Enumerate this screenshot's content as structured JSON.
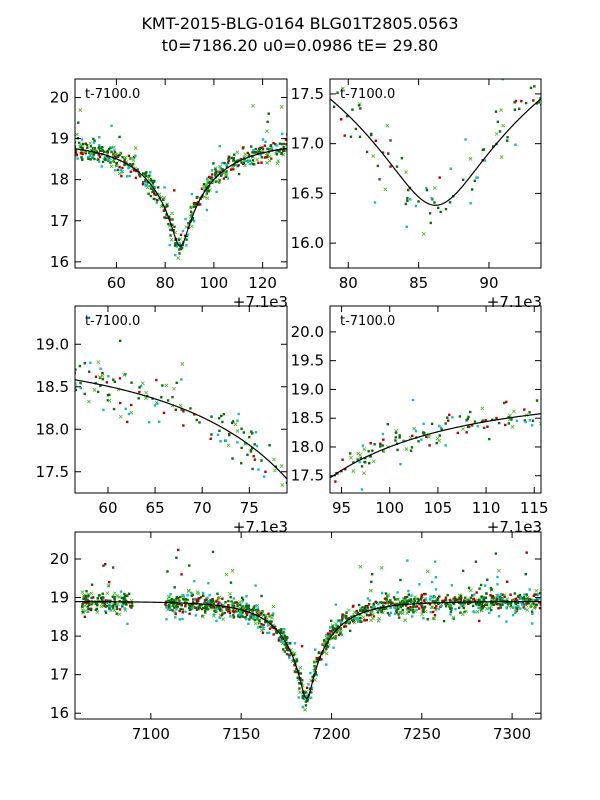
{
  "figure": {
    "title_line1": "KMT-2015-BLG-0164 BLG01T2805.0563",
    "title_line2": "t0=7186.20 u0=0.0986 tE=  29.80"
  },
  "colors": {
    "green": "#0a6b0a",
    "red": "#b00000",
    "cyan": "#19b7c2",
    "lightgreen": "#44bb22",
    "model": "#000000"
  },
  "model": {
    "t0": 7186.2,
    "u0": 0.0986,
    "tE": 29.8,
    "mbase": 18.9
  },
  "chart_data": [
    {
      "id": "p1",
      "type": "scatter",
      "inset_label": "t-7100.0",
      "xlim": [
        43,
        130
      ],
      "ylim": [
        20.45,
        15.85
      ],
      "xticks": [
        60,
        80,
        100,
        120
      ],
      "xtick_labels": [
        "60",
        "80",
        "100",
        "120"
      ],
      "yticks": [
        16,
        17,
        18,
        19,
        20
      ],
      "ytick_labels": [
        "16",
        "17",
        "18",
        "19",
        "20"
      ],
      "offset_label": "+7.1e3",
      "offset": 7100
    },
    {
      "id": "p2",
      "type": "scatter",
      "inset_label": "t-7100.0",
      "xlim": [
        78.7,
        93.7
      ],
      "ylim": [
        17.65,
        15.75
      ],
      "xticks": [
        80,
        85,
        90
      ],
      "xtick_labels": [
        "80",
        "85",
        "90"
      ],
      "yticks": [
        16.0,
        16.5,
        17.0,
        17.5
      ],
      "ytick_labels": [
        "16.0",
        "16.5",
        "17.0",
        "17.5"
      ],
      "offset_label": "+7.1e3",
      "offset": 7100
    },
    {
      "id": "p3",
      "type": "scatter",
      "inset_label": "t-7100.0",
      "xlim": [
        56.5,
        79
      ],
      "ylim": [
        19.45,
        17.25
      ],
      "xticks": [
        60,
        65,
        70,
        75
      ],
      "xtick_labels": [
        "60",
        "65",
        "70",
        "75"
      ],
      "yticks": [
        17.5,
        18.0,
        18.5,
        19.0
      ],
      "ytick_labels": [
        "17.5",
        "18.0",
        "18.5",
        "19.0"
      ],
      "offset_label": "+7.1e3",
      "offset": 7100
    },
    {
      "id": "p4",
      "type": "scatter",
      "inset_label": "t-7100.0",
      "xlim": [
        93.8,
        115.7
      ],
      "ylim": [
        20.45,
        17.2
      ],
      "xticks": [
        95,
        100,
        105,
        110,
        115
      ],
      "xtick_labels": [
        "95",
        "100",
        "105",
        "110",
        "115"
      ],
      "yticks": [
        17.5,
        18.0,
        18.5,
        19.0,
        19.5,
        20.0
      ],
      "ytick_labels": [
        "17.5",
        "18.0",
        "18.5",
        "19.0",
        "19.5",
        "20.0"
      ],
      "offset_label": "+7.1e3",
      "offset": 7100
    },
    {
      "id": "p5",
      "type": "scatter",
      "xlim": [
        7058,
        7316
      ],
      "ylim": [
        20.7,
        15.85
      ],
      "xticks": [
        7100,
        7150,
        7200,
        7250,
        7300
      ],
      "xtick_labels": [
        "7100",
        "7150",
        "7200",
        "7250",
        "7300"
      ],
      "yticks": [
        16,
        17,
        18,
        19,
        20
      ],
      "ytick_labels": [
        "16",
        "17",
        "18",
        "19",
        "20"
      ],
      "offset": 0
    }
  ]
}
